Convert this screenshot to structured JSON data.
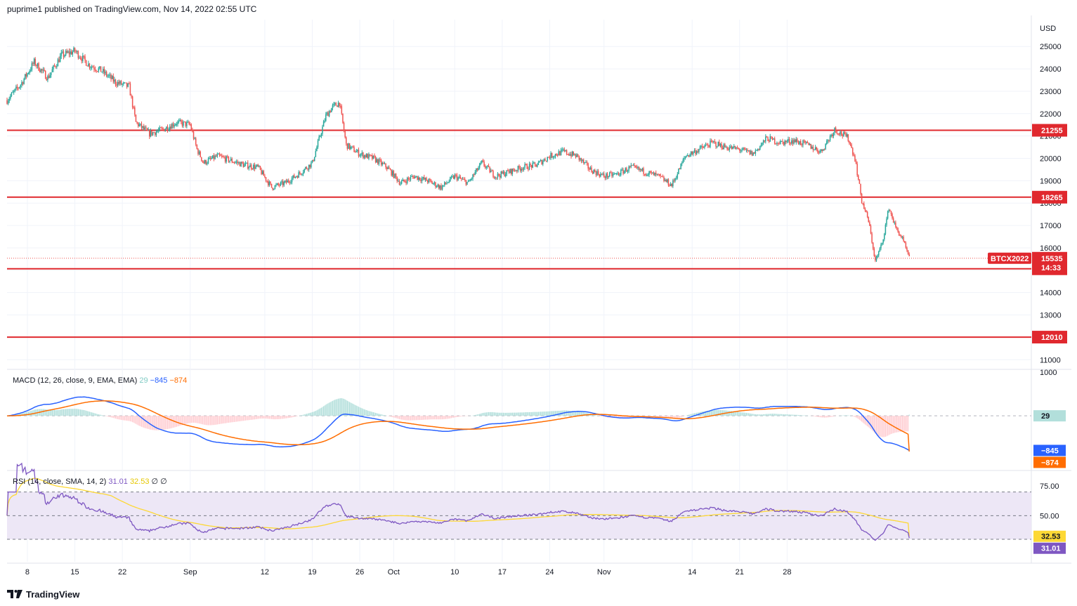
{
  "header": {
    "published": "puprime1 published on TradingView.com, Nov 14, 2022 02:55 UTC"
  },
  "footer": {
    "logo_icon": "tradingview-logo-icon",
    "brand": "TradingView"
  },
  "colors": {
    "up": "#26a69a",
    "down": "#ef5350",
    "level": "#e0282e",
    "macd": "#2962ff",
    "signal": "#ff6d00",
    "rsi": "#7e57c2",
    "rsi_ma": "#fdd835",
    "rsi_band": "#ede7f6",
    "grid": "#f0f3fa",
    "hist_pos": "#b2dfdb",
    "hist_neg": "#ffcdd2"
  },
  "chart_data": {
    "type": "candlestick",
    "symbol_tag": "BTCX2022",
    "currency": "USD",
    "price_axis_ticks": [
      11000,
      12000,
      13000,
      14000,
      15000,
      16000,
      17000,
      18000,
      19000,
      20000,
      21000,
      22000,
      23000,
      24000,
      25000
    ],
    "price_ylim": [
      10600,
      26200
    ],
    "current_price": 15535,
    "countdown": "14:33",
    "horizontal_levels": [
      21255,
      18265,
      15065,
      12010
    ],
    "x_axis_labels": [
      "8",
      "15",
      "22",
      "Sep",
      "12",
      "19",
      "26",
      "Oct",
      "10",
      "17",
      "24",
      "Nov",
      "14",
      "21",
      "28"
    ],
    "price_path": [
      [
        "2022-08-05",
        22600
      ],
      [
        "2022-08-07",
        23300
      ],
      [
        "2022-08-09",
        24300
      ],
      [
        "2022-08-11",
        23600
      ],
      [
        "2022-08-13",
        24600
      ],
      [
        "2022-08-15",
        24800
      ],
      [
        "2022-08-17",
        24200
      ],
      [
        "2022-08-19",
        23900
      ],
      [
        "2022-08-21",
        23400
      ],
      [
        "2022-08-23",
        23200
      ],
      [
        "2022-08-24",
        21600
      ],
      [
        "2022-08-26",
        21100
      ],
      [
        "2022-08-28",
        21300
      ],
      [
        "2022-08-30",
        21600
      ],
      [
        "2022-09-01",
        21500
      ],
      [
        "2022-09-02",
        20400
      ],
      [
        "2022-09-03",
        19800
      ],
      [
        "2022-09-05",
        20100
      ],
      [
        "2022-09-07",
        19900
      ],
      [
        "2022-09-09",
        19700
      ],
      [
        "2022-09-11",
        19600
      ],
      [
        "2022-09-13",
        18700
      ],
      [
        "2022-09-15",
        18900
      ],
      [
        "2022-09-17",
        19300
      ],
      [
        "2022-09-19",
        19800
      ],
      [
        "2022-09-21",
        21900
      ],
      [
        "2022-09-22",
        22300
      ],
      [
        "2022-09-23",
        22500
      ],
      [
        "2022-09-24",
        20600
      ],
      [
        "2022-09-26",
        20200
      ],
      [
        "2022-09-28",
        20000
      ],
      [
        "2022-09-30",
        19600
      ],
      [
        "2022-10-02",
        18900
      ],
      [
        "2022-10-04",
        19200
      ],
      [
        "2022-10-06",
        19000
      ],
      [
        "2022-10-08",
        18700
      ],
      [
        "2022-10-10",
        19200
      ],
      [
        "2022-10-12",
        18900
      ],
      [
        "2022-10-14",
        19800
      ],
      [
        "2022-10-16",
        19200
      ],
      [
        "2022-10-18",
        19400
      ],
      [
        "2022-10-20",
        19600
      ],
      [
        "2022-10-22",
        19700
      ],
      [
        "2022-10-24",
        20100
      ],
      [
        "2022-10-26",
        20300
      ],
      [
        "2022-10-28",
        20100
      ],
      [
        "2022-10-30",
        19500
      ],
      [
        "2022-11-01",
        19200
      ],
      [
        "2022-11-03",
        19300
      ],
      [
        "2022-11-05",
        19600
      ],
      [
        "2022-11-07",
        19400
      ],
      [
        "2022-11-09",
        19200
      ],
      [
        "2022-11-11",
        18800
      ],
      [
        "2022-11-13",
        20100
      ],
      [
        "2022-11-15",
        20400
      ],
      [
        "2022-11-17",
        20700
      ],
      [
        "2022-11-19",
        20500
      ],
      [
        "2022-11-21",
        20400
      ],
      [
        "2022-11-23",
        20200
      ],
      [
        "2022-11-25",
        20900
      ],
      [
        "2022-11-27",
        20700
      ],
      [
        "2022-11-29",
        20800
      ],
      [
        "2022-12-01",
        20600
      ],
      [
        "2022-12-03",
        20300
      ],
      [
        "2022-12-05",
        21300
      ],
      [
        "2022-12-06",
        21100
      ],
      [
        "2022-12-07",
        20900
      ],
      [
        "2022-12-08",
        20000
      ],
      [
        "2022-12-09",
        18100
      ],
      [
        "2022-12-10",
        17200
      ],
      [
        "2022-12-11",
        15400
      ],
      [
        "2022-12-12",
        16200
      ],
      [
        "2022-12-13",
        17800
      ],
      [
        "2022-12-14",
        16900
      ],
      [
        "2022-12-15",
        16400
      ],
      [
        "2022-12-16",
        15535
      ]
    ],
    "macd": {
      "label": "MACD (12, 26, close, 9, EMA, EMA)",
      "hist": 29,
      "macd": -845,
      "signal": -874,
      "hist_text": "29",
      "macd_text": "−845",
      "signal_text": "−874",
      "axis_label": "1000",
      "ylim": [
        -1300,
        1100
      ]
    },
    "rsi": {
      "label": "RSI (14, close, SMA, 14, 2)",
      "rsi": 31.01,
      "rsi_ma": 32.53,
      "rsi_text": "31.01",
      "rsi_ma_text": "32.53",
      "extra_text": "∅  ∅",
      "levels": [
        70,
        50,
        30
      ],
      "axis_ticks": [
        "75.00",
        "50.00",
        "25.00"
      ],
      "ylim": [
        11,
        87
      ]
    }
  }
}
